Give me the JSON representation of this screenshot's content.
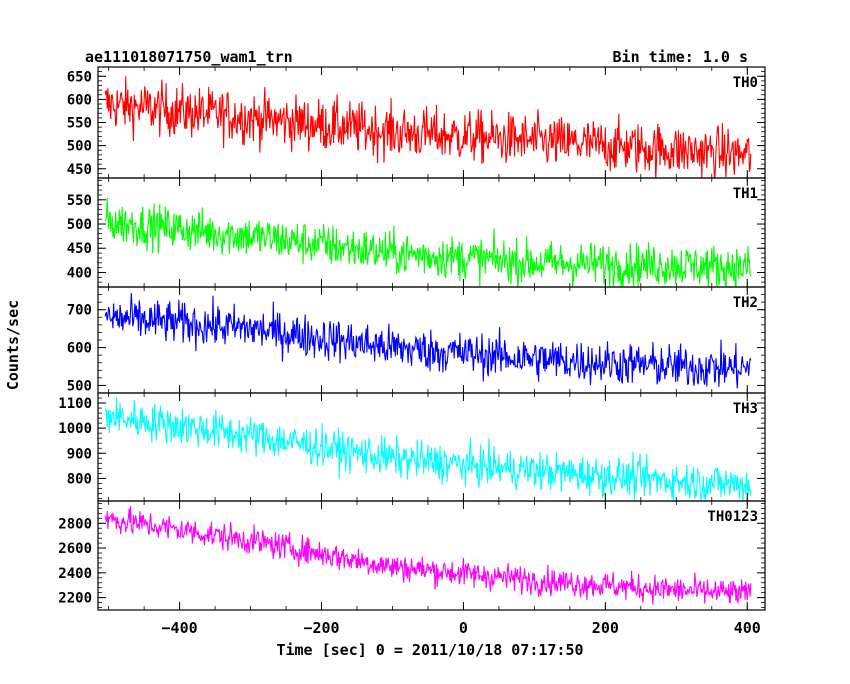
{
  "header": {
    "title": "ae111018071750_wam1_trn",
    "bin_time": "Bin time: 1.0 s"
  },
  "chart_data": {
    "type": "line",
    "title": "ae111018071750_wam1_trn",
    "xlabel": "Time [sec] 0 = 2011/10/18 07:17:50",
    "ylabel": "Counts/sec",
    "xlim": [
      -515,
      425
    ],
    "x_ticks": [
      -400,
      -200,
      0,
      200,
      400
    ],
    "x_tick_labels": [
      "−400",
      "−200",
      "0",
      "200",
      "400"
    ],
    "x_range": [
      -505,
      405
    ],
    "noise_model": "Light curve with Poisson-like scatter; series trend values given at key times",
    "panels": [
      {
        "name": "TH0",
        "color": "#ff0000",
        "ylim": [
          430,
          670
        ],
        "y_ticks": [
          450,
          500,
          550,
          600,
          650
        ],
        "trend_x": [
          -505,
          -300,
          -100,
          100,
          300,
          405
        ],
        "trend_y": [
          590,
          560,
          530,
          510,
          490,
          480
        ],
        "noise": 28
      },
      {
        "name": "TH1",
        "color": "#00ff00",
        "ylim": [
          370,
          595
        ],
        "y_ticks": [
          400,
          450,
          500,
          550
        ],
        "trend_x": [
          -505,
          -300,
          -100,
          100,
          300,
          405
        ],
        "trend_y": [
          505,
          475,
          440,
          420,
          415,
          410
        ],
        "noise": 22
      },
      {
        "name": "TH2",
        "color": "#0000ff",
        "ylim": [
          480,
          760
        ],
        "y_ticks": [
          500,
          600,
          700
        ],
        "trend_x": [
          -505,
          -300,
          -100,
          100,
          300,
          405
        ],
        "trend_y": [
          680,
          650,
          600,
          570,
          550,
          545
        ],
        "noise": 28
      },
      {
        "name": "TH3",
        "color": "#00ffff",
        "ylim": [
          710,
          1140
        ],
        "y_ticks": [
          800,
          900,
          1000,
          1100
        ],
        "trend_x": [
          -505,
          -300,
          -100,
          100,
          300,
          405
        ],
        "trend_y": [
          1050,
          970,
          880,
          830,
          790,
          775
        ],
        "noise": 38
      },
      {
        "name": "TH0123",
        "color": "#ff00ff",
        "ylim": [
          2100,
          2980
        ],
        "y_ticks": [
          2200,
          2400,
          2600,
          2800
        ],
        "trend_x": [
          -505,
          -300,
          -100,
          100,
          300,
          405
        ],
        "trend_y": [
          2840,
          2660,
          2450,
          2340,
          2260,
          2230
        ],
        "noise": 55
      }
    ]
  }
}
